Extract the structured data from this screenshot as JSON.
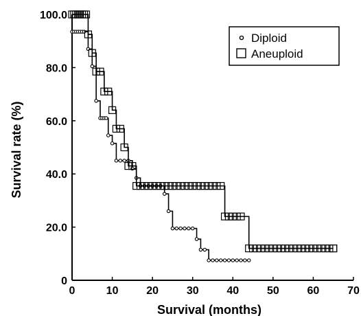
{
  "chart_data": {
    "type": "line",
    "step": true,
    "title": "",
    "xlabel": "Survival (months)",
    "ylabel": "Survival rate (%)",
    "xlim": [
      0,
      70
    ],
    "ylim": [
      0,
      100
    ],
    "xticks": [
      0,
      10,
      20,
      30,
      40,
      50,
      60,
      70
    ],
    "yticks": [
      0,
      20,
      40,
      60,
      80,
      100
    ],
    "ytick_labels": [
      "0",
      "20.0",
      "40.0",
      "60.0",
      "80.0",
      "100.0"
    ],
    "grid": false,
    "legend_position": "top-right",
    "series": [
      {
        "name": "Diploid",
        "marker": "small-circle",
        "color": "#000000",
        "steps": [
          [
            0,
            93.5
          ],
          [
            4,
            87
          ],
          [
            5,
            80.5
          ],
          [
            6,
            67.5
          ],
          [
            7,
            61
          ],
          [
            9,
            54.5
          ],
          [
            10,
            51.5
          ],
          [
            11,
            45
          ],
          [
            15,
            42
          ],
          [
            16,
            38.5
          ],
          [
            17,
            35.5
          ],
          [
            23,
            32.5
          ],
          [
            24,
            26
          ],
          [
            25,
            19.5
          ],
          [
            31,
            15.5
          ],
          [
            32,
            11.5
          ],
          [
            34,
            7.5
          ],
          [
            44,
            7.5
          ]
        ],
        "censored": [
          0.5,
          1,
          1.5,
          2,
          2.5,
          3,
          7.5,
          8,
          8.5,
          12,
          13,
          14,
          18,
          19,
          20,
          21,
          22,
          26,
          27,
          28,
          29,
          30,
          33,
          35,
          36,
          37,
          38,
          39,
          40,
          41,
          42,
          43
        ]
      },
      {
        "name": "Aneuploid",
        "marker": "square",
        "color": "#000000",
        "steps": [
          [
            0,
            100
          ],
          [
            4,
            92.5
          ],
          [
            5,
            85.5
          ],
          [
            6,
            78.5
          ],
          [
            8,
            71
          ],
          [
            10,
            64
          ],
          [
            11,
            57
          ],
          [
            13,
            50
          ],
          [
            14,
            43
          ],
          [
            16,
            35.5
          ],
          [
            38,
            24
          ],
          [
            44,
            12
          ],
          [
            65,
            12
          ]
        ],
        "censored": [
          0.5,
          1,
          1.5,
          2,
          2.5,
          3,
          3.5,
          7,
          9,
          12,
          15,
          17,
          18,
          19,
          20,
          21,
          22,
          23,
          24,
          25,
          26,
          27,
          28,
          29,
          30,
          31,
          32,
          33,
          34,
          35,
          36,
          37,
          39,
          40,
          41,
          42,
          45,
          46,
          47,
          48,
          49,
          50,
          51,
          52,
          53,
          54,
          55,
          56,
          57,
          58,
          59,
          60,
          61,
          62,
          63,
          64,
          65
        ]
      }
    ]
  }
}
